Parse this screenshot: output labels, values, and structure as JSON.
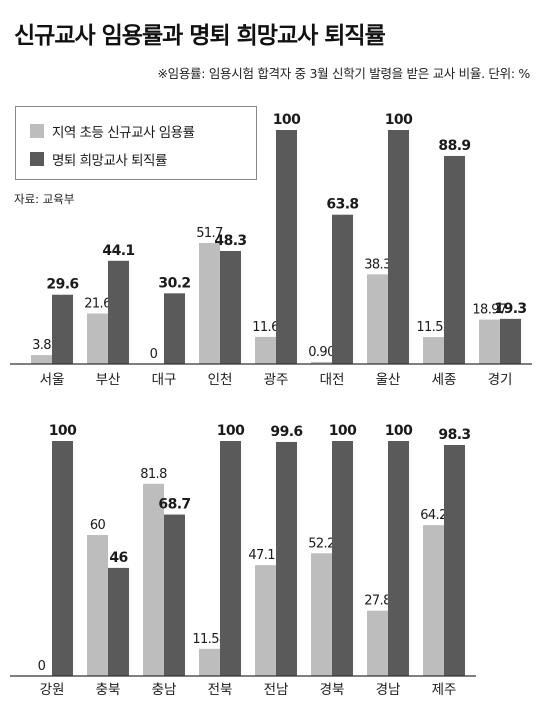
{
  "title": "신규교사 임용률과 명퇴 희망교사 퇴직률",
  "note": "※임용률: 임용시험 합격자 중 3월 신학기 발령을 받은 교사 비율. 단위: %",
  "source": "자료: 교육부",
  "colors": {
    "series1": "#bdbdbd",
    "series2": "#5a5a5a",
    "axis": "#333333"
  },
  "chart_data": [
    {
      "type": "bar",
      "categories": [
        "서울",
        "부산",
        "대구",
        "인천",
        "광주",
        "대전",
        "울산",
        "세종",
        "경기"
      ],
      "series": [
        {
          "name": "지역 초등 신규교사 임용률",
          "values": [
            3.8,
            21.6,
            0,
            51.7,
            11.6,
            0.9,
            38.3,
            11.52,
            18.97
          ],
          "labels": [
            "3.8",
            "21.6",
            "0",
            "51.7",
            "11.6",
            "0.90",
            "38.3",
            "11.52",
            "18.97"
          ]
        },
        {
          "name": "명퇴 희망교사 퇴직률",
          "values": [
            29.6,
            44.1,
            30.2,
            48.3,
            100,
            63.8,
            100,
            88.9,
            19.3
          ],
          "labels": [
            "29.6",
            "44.1",
            "30.2",
            "48.3",
            "100",
            "63.8",
            "100",
            "88.9",
            "19.3"
          ]
        }
      ],
      "ylim": [
        0,
        100
      ]
    },
    {
      "type": "bar",
      "categories": [
        "강원",
        "충북",
        "충남",
        "전북",
        "전남",
        "경북",
        "경남",
        "제주"
      ],
      "series": [
        {
          "name": "지역 초등 신규교사 임용률",
          "values": [
            0,
            60,
            81.8,
            11.58,
            47.17,
            52.2,
            27.8,
            64.2
          ],
          "labels": [
            "0",
            "60",
            "81.8",
            "11.58",
            "47.17",
            "52.2",
            "27.8",
            "64.2"
          ]
        },
        {
          "name": "명퇴 희망교사 퇴직률",
          "values": [
            100,
            46,
            68.7,
            100,
            99.6,
            100,
            100,
            98.3
          ],
          "labels": [
            "100",
            "46",
            "68.7",
            "100",
            "99.6",
            "100",
            "100",
            "98.3"
          ]
        }
      ],
      "ylim": [
        0,
        100
      ]
    }
  ]
}
